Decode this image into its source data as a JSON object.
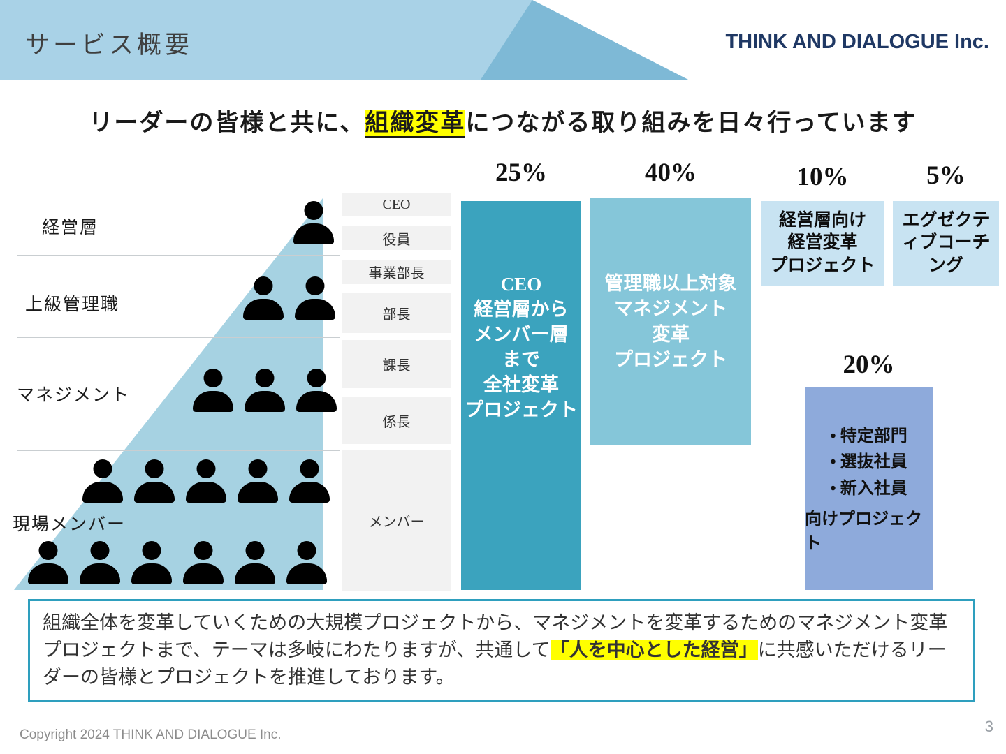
{
  "header": {
    "title": "サービス概要",
    "company": "THINK AND DIALOGUE Inc."
  },
  "headline": {
    "pre": "リーダーの皆様と共に、",
    "highlight": "組織変革",
    "post": "につながる取り組みを日々行っています"
  },
  "org": {
    "layers": [
      "経営層",
      "上級管理職",
      "マネジメント",
      "現場メンバー"
    ],
    "roles": [
      "CEO",
      "役員",
      "事業部長",
      "部長",
      "課長",
      "係長",
      "メンバー"
    ]
  },
  "projects": {
    "full_company": {
      "percent": "25%",
      "text": "CEO\n経営層から\nメンバー層\nまで\n全社変革\nプロジェクト"
    },
    "management": {
      "percent": "40%",
      "text": "管理職以上対象\nマネジメント\n変革\nプロジェクト"
    },
    "executive_change": {
      "percent": "10%",
      "text": "経営層向け\n経営変革\nプロジェクト"
    },
    "executive_coaching": {
      "percent": "5%",
      "text": "エグゼクティブコーチング"
    },
    "selected": {
      "percent": "20%",
      "bullets": "• 特定部門\n• 選抜社員\n• 新入社員",
      "footer": "向けプロジェクト"
    }
  },
  "summary": {
    "pre": "組織全体を変革していくための大規模プロジェクトから、マネジメントを変革するためのマネジメント変革プロジェクトまで、テーマは多岐にわたりますが、共通して",
    "highlight": "「人を中心とした経営」",
    "post": "に共感いただけるリーダーの皆様とプロジェクトを推進しております。"
  },
  "footer": {
    "copyright": "Copyright 2024  THINK AND DIALOGUE Inc.",
    "page": "3"
  },
  "colors": {
    "teal_column": "#3BA3BE",
    "light_blue_column": "#85C6D9",
    "pale_blue_box": "#C8E3F2",
    "periwinkle_box": "#8EAADB",
    "pyramid": "#A6D2E2",
    "header_band": "#A9D2E7",
    "header_accent": "#7EB9D6",
    "highlight": "#FFFF00",
    "summary_border": "#2E9FBE",
    "company_text": "#1F3864"
  }
}
